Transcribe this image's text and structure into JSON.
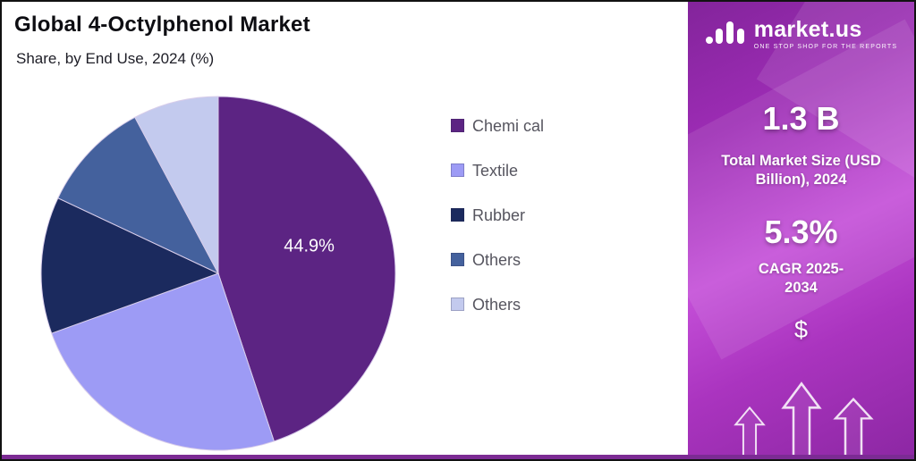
{
  "chart_data": {
    "type": "pie",
    "title": "Global 4-Octylphenol Market",
    "subtitle": "Share, by End Use, 2024 (%)",
    "categories": [
      "Chemical",
      "Textile",
      "Rubber",
      "Others",
      "Others"
    ],
    "values": [
      44.9,
      24.6,
      12.5,
      10.2,
      7.8
    ],
    "colors": [
      "#5C2483",
      "#9D9BF5",
      "#1B2A5E",
      "#44619D",
      "#C3CAEE"
    ],
    "legend_labels": [
      "Chemi cal",
      "Textile",
      "Rubber",
      "Others",
      "Others"
    ],
    "data_labels": [
      {
        "slice": 0,
        "text": "44.9%"
      }
    ],
    "legend_position": "right",
    "start_angle_deg": -90,
    "direction": "clockwise"
  },
  "brand": {
    "name": "market.us",
    "tagline": "ONE STOP SHOP FOR THE REPORTS",
    "stat1_value": "1.3 B",
    "stat1_label": "Total Market Size (USD Billion), 2024",
    "stat2_value": "5.3%",
    "stat2_label": "CAGR 2025-2034",
    "dollar_symbol": "$",
    "panel_gradient": [
      "#83249B",
      "#C44FD8"
    ]
  }
}
